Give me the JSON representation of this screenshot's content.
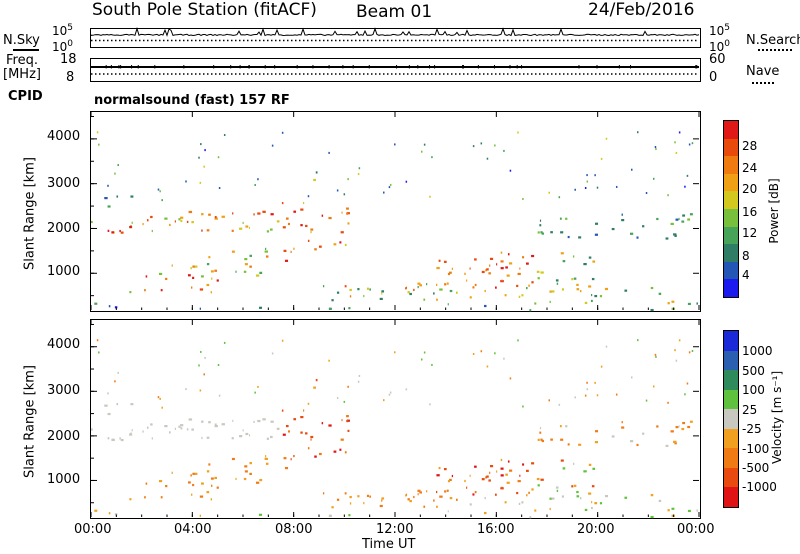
{
  "header": {
    "station": "South Pole Station (fitACF)",
    "beam": "Beam 01",
    "date": "24/Feb/2016"
  },
  "nsky": {
    "label": "N.Sky",
    "tick_top": "10^5",
    "tick_bottom": "10^0"
  },
  "nsearch": {
    "label": "N.Search",
    "tick_top": "10^5",
    "tick_bottom": "10^0"
  },
  "freq": {
    "label_line1": "Freq.",
    "label_line2": "[MHz]",
    "tick_top": "18",
    "tick_bottom": "8"
  },
  "nave": {
    "label": "Nave",
    "tick_top": "60",
    "tick_bottom": "0"
  },
  "cpid": {
    "label": "CPID",
    "mode": "normalsound (fast) 157 RF"
  },
  "chart_data": [
    {
      "type": "heatmap",
      "name": "power",
      "ylabel": "Slant Range [km]",
      "xlabel": "",
      "x_ticks": [
        "00:00",
        "04:00",
        "08:00",
        "12:00",
        "16:00",
        "20:00",
        "00:00"
      ],
      "y_ticks": [
        "1000",
        "2000",
        "3000",
        "4000"
      ],
      "ylim": [
        180,
        4600
      ],
      "xlim_hours": [
        0,
        24
      ],
      "colorbar": {
        "label": "Power [dB]",
        "ticks": [
          "4",
          "8",
          "12",
          "16",
          "20",
          "24",
          "28"
        ],
        "range": [
          0,
          30
        ],
        "colors": [
          "#1b1bf0",
          "#2356b5",
          "#2f7d64",
          "#46a358",
          "#78c03c",
          "#d2c81e",
          "#f0a014",
          "#ee7a10",
          "#e84a0c",
          "#e01818"
        ]
      }
    },
    {
      "type": "heatmap",
      "name": "velocity",
      "ylabel": "Slant Range [km]",
      "xlabel": "Time UT",
      "x_ticks": [
        "00:00",
        "04:00",
        "08:00",
        "12:00",
        "16:00",
        "20:00",
        "00:00"
      ],
      "y_ticks": [
        "1000",
        "2000",
        "3000",
        "4000"
      ],
      "ylim": [
        180,
        4600
      ],
      "xlim_hours": [
        0,
        24
      ],
      "colorbar": {
        "label": "Velocity [m s⁻¹]",
        "ticks": [
          "1000",
          "500",
          "100",
          "25",
          "-25",
          "-100",
          "-500",
          "-1000"
        ],
        "colors": [
          "#1a2ad8",
          "#2b5fb0",
          "#2f8a5c",
          "#5fc23e",
          "#c8c8c0",
          "#f0a01e",
          "#f07a14",
          "#e84a10",
          "#e01414"
        ]
      }
    }
  ]
}
